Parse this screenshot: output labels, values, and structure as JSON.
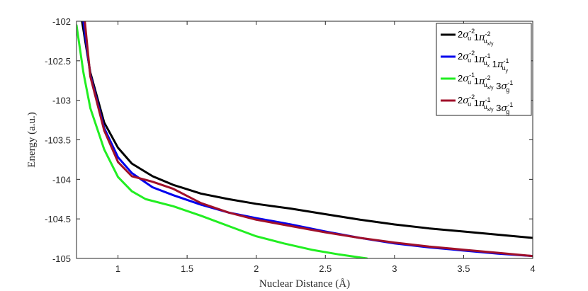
{
  "chart_data": {
    "type": "line",
    "xlabel": "Nuclear Distance (Å)",
    "ylabel": "Energy (a.u.)",
    "xlim": [
      0.7,
      4.0
    ],
    "ylim": [
      -105,
      -102
    ],
    "xticks": [
      1,
      1.5,
      2,
      2.5,
      3,
      3.5,
      4
    ],
    "xtick_labels": [
      "1",
      "1.5",
      "2",
      "2.5",
      "3",
      "3.5",
      "4"
    ],
    "yticks": [
      -102,
      -102.5,
      -103,
      -103.5,
      -104,
      -104.5,
      -105
    ],
    "ytick_labels": [
      "-102",
      "-102.5",
      "-103",
      "-103.5",
      "-104",
      "-104.5",
      "-105"
    ],
    "grid": false,
    "legend_position": "top-right",
    "series": [
      {
        "name": "2σu-2 1πux/y-2",
        "color": "#000000",
        "legend": [
          {
            "t": "2"
          },
          {
            "t": "σ",
            "greek": true
          },
          {
            "sup": "-2",
            "sub": "u"
          },
          {
            "t": " 1"
          },
          {
            "t": "π",
            "greek": true
          },
          {
            "sup": "-2",
            "sub": "u",
            "subsub": "x/y"
          }
        ],
        "x": [
          0.74,
          0.8,
          0.9,
          1.0,
          1.1,
          1.25,
          1.4,
          1.6,
          1.8,
          2.0,
          2.25,
          2.5,
          2.75,
          3.0,
          3.25,
          3.5,
          3.75,
          4.0
        ],
        "y": [
          -102.0,
          -102.65,
          -103.28,
          -103.6,
          -103.8,
          -103.96,
          -104.07,
          -104.18,
          -104.25,
          -104.31,
          -104.37,
          -104.44,
          -104.51,
          -104.57,
          -104.62,
          -104.66,
          -104.7,
          -104.74
        ]
      },
      {
        "name": "2σu-2 1πux-1 1πuy-1",
        "color": "#0000ee",
        "legend": [
          {
            "t": "2"
          },
          {
            "t": "σ",
            "greek": true
          },
          {
            "sup": "-2",
            "sub": "u"
          },
          {
            "t": " 1"
          },
          {
            "t": "π",
            "greek": true
          },
          {
            "sup": "-1",
            "sub": "u",
            "subsub": "x"
          },
          {
            "t": " 1"
          },
          {
            "t": "π",
            "greek": true
          },
          {
            "sup": "-1",
            "sub": "u",
            "subsub": "y"
          }
        ],
        "x": [
          0.75,
          0.8,
          0.9,
          1.0,
          1.1,
          1.25,
          1.4,
          1.6,
          1.8,
          2.0,
          2.25,
          2.5,
          2.75,
          3.0,
          3.25,
          3.5,
          3.75,
          4.0
        ],
        "y": [
          -102.0,
          -102.68,
          -103.35,
          -103.72,
          -103.92,
          -104.1,
          -104.2,
          -104.32,
          -104.42,
          -104.49,
          -104.57,
          -104.66,
          -104.74,
          -104.81,
          -104.86,
          -104.9,
          -104.94,
          -104.97
        ]
      },
      {
        "name": "2σu-1 1πux/y-2 3σg-1",
        "color": "#22ee22",
        "legend": [
          {
            "t": "2"
          },
          {
            "t": "σ",
            "greek": true
          },
          {
            "sup": "-1",
            "sub": "u"
          },
          {
            "t": " 1"
          },
          {
            "t": "π",
            "greek": true
          },
          {
            "sup": "-2",
            "sub": "u",
            "subsub": "x/y"
          },
          {
            "t": " 3"
          },
          {
            "t": "σ",
            "greek": true
          },
          {
            "sup": "-1",
            "sub": "g"
          }
        ],
        "x": [
          0.7,
          0.75,
          0.8,
          0.9,
          1.0,
          1.1,
          1.2,
          1.4,
          1.6,
          1.8,
          2.0,
          2.2,
          2.4,
          2.6,
          2.8
        ],
        "y": [
          -102.05,
          -102.65,
          -103.1,
          -103.62,
          -103.97,
          -104.15,
          -104.25,
          -104.34,
          -104.46,
          -104.59,
          -104.72,
          -104.81,
          -104.89,
          -104.95,
          -105.0
        ]
      },
      {
        "name": "2σu-2 1πux/y-1 3σg-1",
        "color": "#a0102a",
        "legend": [
          {
            "t": "2"
          },
          {
            "t": "σ",
            "greek": true
          },
          {
            "sup": "-2",
            "sub": "u"
          },
          {
            "t": " 1"
          },
          {
            "t": "π",
            "greek": true
          },
          {
            "sup": "-1",
            "sub": "u",
            "subsub": "x/y"
          },
          {
            "t": " 3"
          },
          {
            "t": "σ",
            "greek": true
          },
          {
            "sup": "-1",
            "sub": "g"
          }
        ],
        "x": [
          0.76,
          0.8,
          0.9,
          1.0,
          1.1,
          1.25,
          1.4,
          1.6,
          1.8,
          2.0,
          2.25,
          2.5,
          2.75,
          3.0,
          3.25,
          3.5,
          3.75,
          4.0
        ],
        "y": [
          -102.0,
          -102.7,
          -103.38,
          -103.78,
          -103.96,
          -104.03,
          -104.12,
          -104.3,
          -104.42,
          -104.51,
          -104.59,
          -104.67,
          -104.74,
          -104.8,
          -104.85,
          -104.89,
          -104.93,
          -104.97
        ]
      }
    ]
  }
}
